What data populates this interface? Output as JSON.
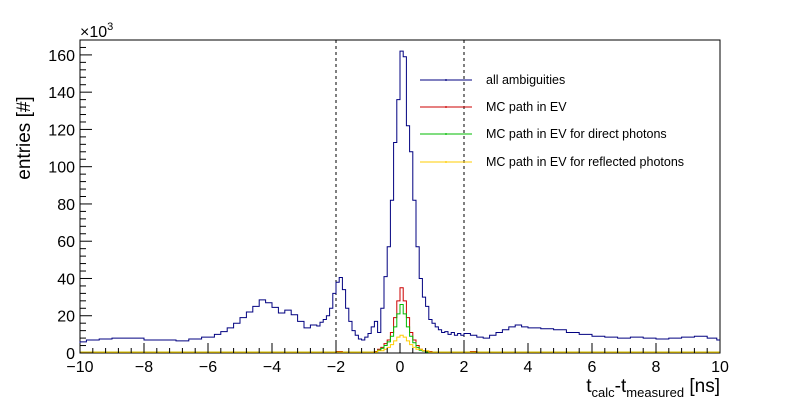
{
  "chart_data": {
    "type": "line",
    "style": "step-histogram",
    "title": "",
    "xlabel_main": "t",
    "xlabel_sub1": "calc",
    "xlabel_mid": "-t",
    "xlabel_sub2": "measured",
    "xlabel_unit": " [ns]",
    "ylabel": "entries [#]",
    "y_multiplier_base": "×10",
    "y_multiplier_exp": "3",
    "xlim": [
      -10,
      10
    ],
    "ylim": [
      0,
      168
    ],
    "x_ticks": [
      -10,
      -8,
      -6,
      -4,
      -2,
      0,
      2,
      4,
      6,
      8,
      10
    ],
    "y_ticks": [
      0,
      20,
      40,
      60,
      80,
      100,
      120,
      140,
      160
    ],
    "bin_width": 0.1,
    "cut_lines_x": [
      -2,
      2
    ],
    "legend_position": "top-right",
    "grid": false,
    "series": [
      {
        "name": "all ambiguities",
        "color": "#000080",
        "bins": [
          [
            -10.0,
            6.0
          ],
          [
            -9.8,
            7.0
          ],
          [
            -9.4,
            7.5
          ],
          [
            -9.0,
            8.0
          ],
          [
            -8.0,
            7.0
          ],
          [
            -7.0,
            6.5
          ],
          [
            -6.6,
            7.5
          ],
          [
            -6.2,
            8.5
          ],
          [
            -5.8,
            10.0
          ],
          [
            -5.6,
            11.5
          ],
          [
            -5.4,
            13.5
          ],
          [
            -5.2,
            16.0
          ],
          [
            -5.0,
            19.0
          ],
          [
            -4.8,
            22.0
          ],
          [
            -4.6,
            25.0
          ],
          [
            -4.4,
            28.5
          ],
          [
            -4.2,
            27.0
          ],
          [
            -4.0,
            24.5
          ],
          [
            -3.8,
            21.5
          ],
          [
            -3.6,
            23.0
          ],
          [
            -3.4,
            20.5
          ],
          [
            -3.2,
            17.0
          ],
          [
            -3.0,
            13.5
          ],
          [
            -2.8,
            15.0
          ],
          [
            -2.6,
            14.5
          ],
          [
            -2.5,
            16.5
          ],
          [
            -2.4,
            18.0
          ],
          [
            -2.3,
            20.0
          ],
          [
            -2.2,
            24.0
          ],
          [
            -2.1,
            32.0
          ],
          [
            -2.0,
            38.0
          ],
          [
            -1.9,
            40.5
          ],
          [
            -1.8,
            34.0
          ],
          [
            -1.7,
            24.0
          ],
          [
            -1.6,
            17.0
          ],
          [
            -1.5,
            12.0
          ],
          [
            -1.4,
            9.5
          ],
          [
            -1.3,
            7.5
          ],
          [
            -1.2,
            7.0
          ],
          [
            -1.1,
            8.5
          ],
          [
            -1.0,
            10.5
          ],
          [
            -0.9,
            14.0
          ],
          [
            -0.8,
            17.0
          ],
          [
            -0.7,
            11.0
          ],
          [
            -0.6,
            24.0
          ],
          [
            -0.5,
            41.0
          ],
          [
            -0.4,
            57.0
          ],
          [
            -0.3,
            82.0
          ],
          [
            -0.2,
            113.0
          ],
          [
            -0.1,
            136.0
          ],
          [
            0.0,
            162.0
          ],
          [
            0.1,
            159.0
          ],
          [
            0.2,
            122.0
          ],
          [
            0.3,
            108.0
          ],
          [
            0.4,
            82.0
          ],
          [
            0.5,
            57.0
          ],
          [
            0.6,
            40.0
          ],
          [
            0.7,
            30.0
          ],
          [
            0.8,
            25.0
          ],
          [
            0.9,
            18.0
          ],
          [
            1.0,
            16.0
          ],
          [
            1.1,
            14.0
          ],
          [
            1.2,
            12.5
          ],
          [
            1.3,
            11.0
          ],
          [
            1.4,
            11.5
          ],
          [
            1.5,
            10.0
          ],
          [
            1.6,
            11.0
          ],
          [
            1.7,
            9.5
          ],
          [
            1.8,
            10.5
          ],
          [
            1.9,
            9.5
          ],
          [
            2.0,
            10.5
          ],
          [
            2.2,
            9.5
          ],
          [
            2.4,
            8.5
          ],
          [
            2.6,
            8.0
          ],
          [
            2.8,
            9.5
          ],
          [
            3.0,
            11.0
          ],
          [
            3.2,
            12.5
          ],
          [
            3.4,
            14.0
          ],
          [
            3.6,
            15.0
          ],
          [
            3.8,
            14.0
          ],
          [
            4.0,
            13.5
          ],
          [
            4.4,
            13.0
          ],
          [
            4.8,
            12.5
          ],
          [
            5.2,
            11.0
          ],
          [
            5.6,
            10.0
          ],
          [
            6.0,
            9.0
          ],
          [
            6.4,
            8.5
          ],
          [
            6.8,
            8.0
          ],
          [
            7.2,
            8.5
          ],
          [
            7.6,
            8.0
          ],
          [
            8.0,
            7.5
          ],
          [
            8.4,
            8.0
          ],
          [
            8.8,
            8.5
          ],
          [
            9.2,
            9.0
          ],
          [
            9.6,
            8.0
          ],
          [
            9.9,
            7.0
          ]
        ],
        "end": 10.0
      },
      {
        "name": "MC path in EV",
        "color": "#cc0000",
        "bins": [
          [
            -10.0,
            0.5
          ],
          [
            -2.0,
            0.8
          ],
          [
            -1.8,
            0.5
          ],
          [
            -0.8,
            0.8
          ],
          [
            -0.7,
            2.0
          ],
          [
            -0.6,
            3.0
          ],
          [
            -0.5,
            5.0
          ],
          [
            -0.4,
            7.0
          ],
          [
            -0.3,
            11.0
          ],
          [
            -0.2,
            19.0
          ],
          [
            -0.1,
            28.0
          ],
          [
            0.0,
            35.0
          ],
          [
            0.1,
            28.0
          ],
          [
            0.2,
            19.0
          ],
          [
            0.3,
            11.0
          ],
          [
            0.4,
            7.0
          ],
          [
            0.5,
            4.0
          ],
          [
            0.6,
            2.0
          ],
          [
            0.7,
            1.2
          ],
          [
            0.8,
            0.8
          ],
          [
            1.0,
            0.5
          ],
          [
            2.2,
            0.8
          ],
          [
            2.4,
            0.5
          ]
        ],
        "end": 10.0
      },
      {
        "name": "MC path in EV for direct photons",
        "color": "#00bb00",
        "bins": [
          [
            -10.0,
            0.5
          ],
          [
            -0.7,
            1.5
          ],
          [
            -0.6,
            2.5
          ],
          [
            -0.5,
            4.0
          ],
          [
            -0.4,
            6.0
          ],
          [
            -0.3,
            9.0
          ],
          [
            -0.2,
            14.0
          ],
          [
            -0.1,
            21.0
          ],
          [
            0.0,
            26.0
          ],
          [
            0.1,
            21.0
          ],
          [
            0.2,
            14.0
          ],
          [
            0.3,
            9.0
          ],
          [
            0.4,
            5.5
          ],
          [
            0.5,
            3.0
          ],
          [
            0.6,
            1.5
          ],
          [
            0.7,
            1.0
          ],
          [
            0.8,
            0.5
          ]
        ],
        "end": 10.0
      },
      {
        "name": "MC path in EV for reflected photons",
        "color": "#ffcc00",
        "bins": [
          [
            -10.0,
            0.5
          ],
          [
            -0.7,
            1.2
          ],
          [
            -0.5,
            2.0
          ],
          [
            -0.4,
            3.0
          ],
          [
            -0.3,
            4.5
          ],
          [
            -0.2,
            6.5
          ],
          [
            -0.1,
            8.5
          ],
          [
            0.0,
            9.5
          ],
          [
            0.1,
            8.5
          ],
          [
            0.2,
            6.5
          ],
          [
            0.3,
            4.5
          ],
          [
            0.4,
            3.0
          ],
          [
            0.5,
            2.0
          ],
          [
            0.7,
            1.2
          ],
          [
            0.9,
            0.5
          ]
        ],
        "end": 10.0
      }
    ]
  }
}
